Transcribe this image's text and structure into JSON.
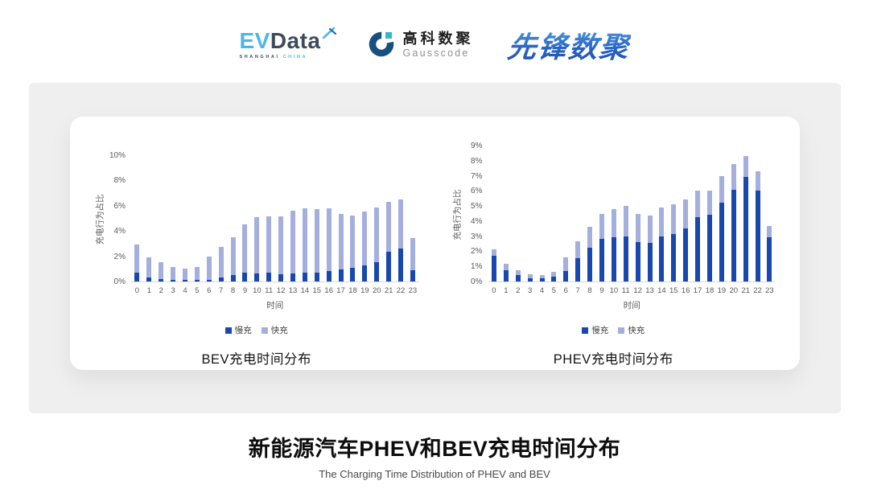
{
  "header": {
    "evdata": {
      "ev": "EV",
      "data": "Data",
      "sub_left": "SHANGHAI",
      "sub_right": "CHINA"
    },
    "gausscode": {
      "cn": "高科数聚",
      "en": "Gausscode"
    },
    "xianfeng": {
      "text": "先锋数聚"
    }
  },
  "colors": {
    "slow_charge": "#1847ae",
    "fast_charge": "#a5afde",
    "evdata_blue": "#49b8e8",
    "evdata_dark": "#3e4a5c",
    "gausscode_navy": "#174f80",
    "gausscode_teal": "#35b6c9",
    "xianfeng_blue": "#2a66c6",
    "panel_gray": "#efeff0"
  },
  "chart_data": [
    {
      "type": "bar",
      "stacked": true,
      "title": "BEV充电时间分布",
      "xlabel": "时间",
      "ylabel": "充电行为占比",
      "grid": false,
      "legend_position": "bottom",
      "ylim": [
        0,
        10
      ],
      "ytick_step": 2,
      "ytick_suffix": "%",
      "x": [
        0,
        1,
        2,
        3,
        4,
        5,
        6,
        7,
        8,
        9,
        10,
        11,
        12,
        13,
        14,
        15,
        16,
        17,
        18,
        19,
        20,
        21,
        22,
        23
      ],
      "series": [
        {
          "name": "慢充",
          "color": "#1847ae",
          "values": [
            0.7,
            0.3,
            0.2,
            0.1,
            0.1,
            0.1,
            0.15,
            0.3,
            0.5,
            0.7,
            0.65,
            0.7,
            0.6,
            0.65,
            0.7,
            0.7,
            0.8,
            0.95,
            1.1,
            1.3,
            1.55,
            2.35,
            2.6,
            0.9
          ]
        },
        {
          "name": "快充",
          "color": "#a5afde",
          "values": [
            2.2,
            1.6,
            1.3,
            1.05,
            0.95,
            1.05,
            1.8,
            2.45,
            3.0,
            3.85,
            4.45,
            4.45,
            4.55,
            4.95,
            5.1,
            5.05,
            5.0,
            4.4,
            4.15,
            4.25,
            4.3,
            3.95,
            3.9,
            2.55
          ]
        }
      ]
    },
    {
      "type": "bar",
      "stacked": true,
      "title": "PHEV充电时间分布",
      "xlabel": "时间",
      "ylabel": "充电行为占比",
      "grid": false,
      "legend_position": "bottom",
      "ylim": [
        0,
        9
      ],
      "ytick_step": 1,
      "ytick_suffix": "%",
      "x": [
        0,
        1,
        2,
        3,
        4,
        5,
        6,
        7,
        8,
        9,
        10,
        11,
        12,
        13,
        14,
        15,
        16,
        17,
        18,
        19,
        20,
        21,
        22,
        23
      ],
      "series": [
        {
          "name": "慢充",
          "color": "#1847ae",
          "values": [
            1.7,
            0.75,
            0.45,
            0.2,
            0.2,
            0.3,
            0.7,
            1.55,
            2.25,
            2.8,
            2.95,
            3.0,
            2.6,
            2.55,
            3.0,
            3.15,
            3.5,
            4.25,
            4.4,
            5.2,
            6.05,
            6.9,
            6.0,
            2.95
          ]
        },
        {
          "name": "快充",
          "color": "#a5afde",
          "values": [
            0.45,
            0.4,
            0.3,
            0.3,
            0.25,
            0.35,
            0.9,
            1.1,
            1.35,
            1.7,
            1.85,
            2.0,
            1.9,
            1.8,
            1.9,
            1.95,
            1.95,
            1.75,
            1.6,
            1.8,
            1.75,
            1.4,
            1.3,
            0.7
          ]
        }
      ]
    }
  ],
  "footer": {
    "title": "新能源汽车PHEV和BEV充电时间分布",
    "subtitle": "The Charging Time Distribution of PHEV and BEV"
  }
}
